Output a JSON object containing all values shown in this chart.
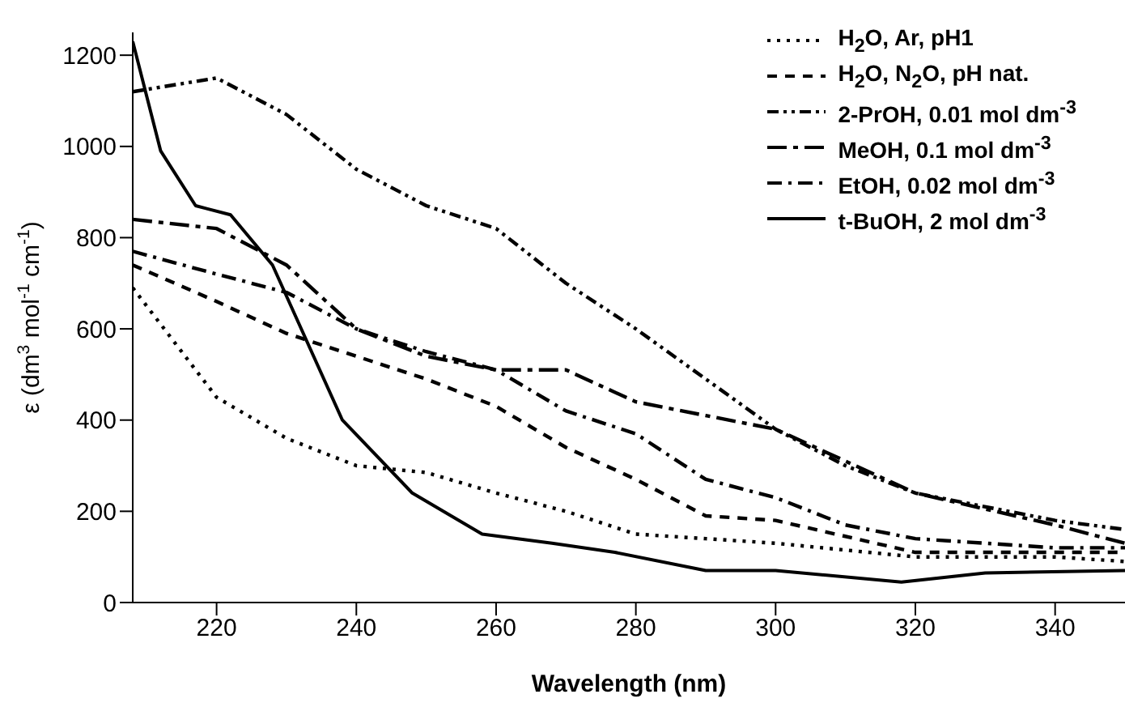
{
  "chart_data": {
    "type": "line",
    "xlabel": "Wavelength (nm)",
    "ylabel": "ε (dm$^{3}$ mol$^{-1}$ cm$^{-1}$)",
    "xlim": [
      208,
      350
    ],
    "xticks": [
      220,
      240,
      260,
      280,
      300,
      320,
      340
    ],
    "ylim": [
      0,
      1250
    ],
    "yticks": [
      0,
      200,
      400,
      600,
      800,
      1000,
      1200
    ],
    "grid": false,
    "legend": "top right",
    "marker": "none",
    "series": [
      {
        "name": "H$_{2}$O, Ar, pH1",
        "color": "#000000",
        "line_style": "dotted",
        "x": [
          208,
          220,
          230,
          240,
          250,
          260,
          270,
          280,
          290,
          300,
          320,
          340,
          350
        ],
        "values": [
          690,
          450,
          360,
          300,
          285,
          240,
          200,
          150,
          140,
          130,
          100,
          100,
          90
        ]
      },
      {
        "name": "H$_{2}$O, N$_{2}$O, pH nat.",
        "color": "#000000",
        "line_style": "dashed",
        "x": [
          208,
          220,
          230,
          240,
          250,
          260,
          270,
          280,
          290,
          300,
          320,
          340,
          350
        ],
        "values": [
          740,
          660,
          590,
          540,
          490,
          430,
          340,
          270,
          190,
          180,
          110,
          110,
          110
        ]
      },
      {
        "name": "2-PrOH, 0.01 mol dm$^{-3}$",
        "color": "#000000",
        "line_style": "dashdotdot",
        "x": [
          208,
          220,
          230,
          240,
          250,
          260,
          270,
          280,
          290,
          300,
          310,
          320,
          340,
          350
        ],
        "values": [
          1120,
          1150,
          1070,
          950,
          870,
          820,
          700,
          600,
          490,
          380,
          300,
          240,
          180,
          160
        ]
      },
      {
        "name": "MeOH, 0.1 mol dm$^{-3}$",
        "color": "#000000",
        "line_style": "longdashdot",
        "x": [
          208,
          220,
          230,
          240,
          250,
          260,
          270,
          280,
          290,
          300,
          320,
          340,
          350
        ],
        "values": [
          840,
          820,
          740,
          600,
          540,
          510,
          510,
          440,
          410,
          380,
          240,
          170,
          130
        ]
      },
      {
        "name": "EtOH, 0.02 mol dm$^{-3}$",
        "color": "#000000",
        "line_style": "dashdot",
        "x": [
          208,
          220,
          230,
          240,
          250,
          260,
          270,
          280,
          290,
          300,
          310,
          320,
          340,
          350
        ],
        "values": [
          770,
          720,
          680,
          600,
          550,
          510,
          420,
          370,
          270,
          230,
          170,
          140,
          120,
          120
        ]
      },
      {
        "name": "t-BuOH, 2 mol dm$^{-3}$",
        "color": "#000000",
        "line_style": "solid",
        "x": [
          208,
          212,
          217,
          222,
          228,
          238,
          248,
          258,
          268,
          277,
          290,
          300,
          318,
          330,
          350
        ],
        "values": [
          1230,
          990,
          870,
          850,
          740,
          400,
          240,
          150,
          130,
          110,
          70,
          70,
          45,
          65,
          70
        ]
      }
    ]
  }
}
